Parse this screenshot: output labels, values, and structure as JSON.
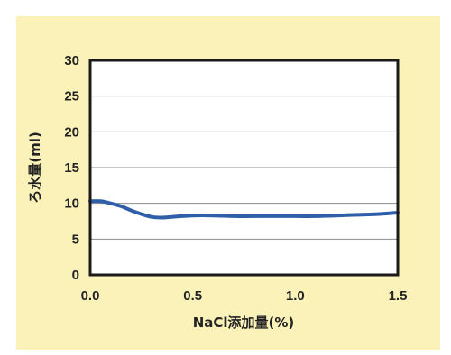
{
  "chart_data": {
    "type": "line",
    "title": "",
    "xlabel": "NaCl添加量(%)",
    "ylabel": "ろ水量(ml)",
    "xlim": [
      0.0,
      1.5
    ],
    "ylim": [
      0,
      30
    ],
    "xticks": [
      "0.0",
      "0.5",
      "1.0",
      "1.5"
    ],
    "yticks": [
      "0",
      "5",
      "10",
      "15",
      "20",
      "25",
      "30"
    ],
    "grid": "horizontal",
    "legend": "none",
    "series": [
      {
        "color": "#2f5fa8",
        "x": [
          0.0,
          0.05,
          0.1,
          0.15,
          0.2,
          0.25,
          0.3,
          0.35,
          0.4,
          0.5,
          0.6,
          0.7,
          0.8,
          0.9,
          1.0,
          1.1,
          1.2,
          1.3,
          1.4,
          1.5
        ],
        "y": [
          10.3,
          10.3,
          10.0,
          9.6,
          9.0,
          8.5,
          8.1,
          8.0,
          8.1,
          8.3,
          8.3,
          8.2,
          8.2,
          8.2,
          8.2,
          8.2,
          8.3,
          8.4,
          8.5,
          8.7
        ]
      }
    ]
  }
}
